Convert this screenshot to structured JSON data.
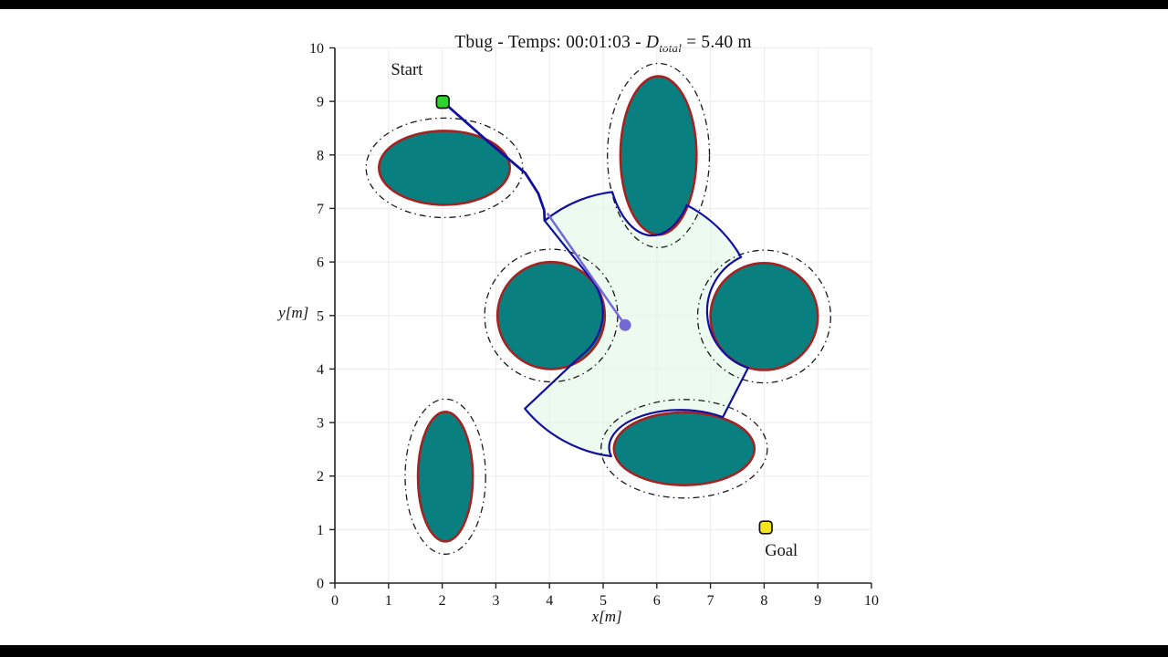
{
  "title": {
    "prefix": "Tbug - Temps: 00:01:03 - ",
    "symbol": "D",
    "subscript": "total",
    "suffix": " = 5.40 m"
  },
  "chart_data": {
    "type": "scatter",
    "description": "Tangent-Bug path planning simulation: robot path among elliptical obstacles with safety-margin contours and a sensed visibility region",
    "axes": {
      "xlabel": "x[m]",
      "ylabel": "y[m]",
      "xlim": [
        0,
        10
      ],
      "ylim": [
        0,
        10
      ],
      "xticks": [
        "0",
        "1",
        "2",
        "3",
        "4",
        "5",
        "6",
        "7",
        "8",
        "9",
        "10"
      ],
      "yticks": [
        "0",
        "1",
        "2",
        "3",
        "4",
        "5",
        "6",
        "7",
        "8",
        "9",
        "10"
      ],
      "grid": true,
      "xlabel_pos": [
        5.07,
        -0.72
      ],
      "ylabel_pos": [
        -0.77,
        4.96
      ]
    },
    "markers": {
      "start": {
        "label": "Start",
        "x": 2.01,
        "y": 8.99,
        "label_x": 1.34,
        "label_y": 9.5
      },
      "goal": {
        "label": "Goal",
        "x": 8.03,
        "y": 1.04,
        "label_x": 8.32,
        "label_y": 0.51
      }
    },
    "robot": {
      "x": 5.41,
      "y": 4.82,
      "sensor_radius": 2.49
    },
    "safety_margin": 0.24,
    "obstacles": [
      {
        "cx": 2.04,
        "cy": 7.76,
        "rx": 1.22,
        "ry": 0.69
      },
      {
        "cx": 6.03,
        "cy": 7.99,
        "rx": 0.71,
        "ry": 1.48
      },
      {
        "cx": 4.03,
        "cy": 5.0,
        "rx": 1.0,
        "ry": 1.0
      },
      {
        "cx": 8.0,
        "cy": 4.98,
        "rx": 1.0,
        "ry": 1.0
      },
      {
        "cx": 6.51,
        "cy": 2.51,
        "rx": 1.31,
        "ry": 0.68
      },
      {
        "cx": 2.06,
        "cy": 1.99,
        "rx": 0.51,
        "ry": 1.21
      }
    ],
    "path_traveled": [
      [
        2.04,
        8.97
      ],
      [
        2.47,
        8.59
      ],
      [
        2.89,
        8.22
      ],
      [
        3.28,
        7.89
      ],
      [
        3.55,
        7.66
      ],
      [
        3.79,
        7.28
      ],
      [
        3.9,
        6.97
      ],
      [
        3.91,
        6.78
      ]
    ],
    "heading_segment": {
      "from": [
        3.96,
        6.91
      ],
      "to": [
        5.41,
        4.82
      ]
    },
    "visibility_region": {
      "start": [
        3.91,
        6.77
      ],
      "segments": [
        {
          "type": "arc",
          "rx": 2.49,
          "ry": 2.49,
          "sweep": 1,
          "to": [
            5.17,
            7.31
          ]
        },
        {
          "type": "arc",
          "rx": 0.85,
          "ry": 1.6,
          "sweep": 0,
          "to": [
            6.56,
            7.06
          ]
        },
        {
          "type": "arc",
          "rx": 2.49,
          "ry": 2.49,
          "sweep": 1,
          "to": [
            7.57,
            6.09
          ]
        },
        {
          "type": "arc",
          "rx": 1.12,
          "ry": 1.12,
          "sweep": 0,
          "to": [
            7.7,
            4.02
          ]
        },
        {
          "type": "line",
          "to": [
            7.23,
            3.1
          ]
        },
        {
          "type": "arc",
          "rx": 1.33,
          "ry": 0.7,
          "sweep": 0,
          "to": [
            5.15,
            2.37
          ]
        },
        {
          "type": "arc",
          "rx": 2.49,
          "ry": 2.49,
          "sweep": 1,
          "to": [
            3.54,
            3.26
          ]
        },
        {
          "type": "line",
          "to": [
            4.59,
            4.25
          ]
        },
        {
          "type": "arc",
          "rx": 1.01,
          "ry": 1.01,
          "sweep": 0,
          "to": [
            4.81,
            5.64
          ]
        },
        {
          "type": "line",
          "to": [
            3.91,
            6.77
          ]
        }
      ]
    },
    "colors": {
      "obstacle_fill": "#0a7f7f",
      "obstacle_edge": "#a32222",
      "margin_contour": "#1a1a1a",
      "path": "#10109e",
      "region_fill": "rgba(224,246,229,0.60)",
      "region_edge": "#10109e",
      "heading": "#7468d4",
      "start_marker": "#2fd32f",
      "goal_marker": "#f5e41b",
      "grid": "#ebebeb",
      "axis": "#222222"
    }
  }
}
